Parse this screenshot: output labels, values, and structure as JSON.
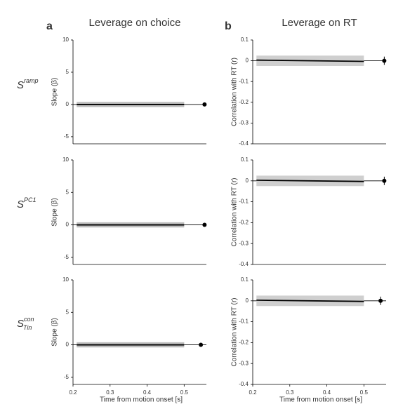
{
  "panel_labels": [
    "a",
    "b"
  ],
  "column_titles": [
    "Leverage on choice",
    "Leverage on RT"
  ],
  "row_labels": [
    {
      "base": "S",
      "sup": "ramp"
    },
    {
      "base": "S",
      "sup": "PC1"
    },
    {
      "base": "S",
      "sup": "con",
      "sub": "Tin"
    }
  ],
  "chart_data": [
    {
      "type": "line",
      "ylabel": "Slope (β)",
      "x": [
        0.21,
        0.5
      ],
      "values": [
        0,
        0
      ],
      "band_lower": [
        -0.4,
        -0.4
      ],
      "band_upper": [
        0.4,
        0.4
      ],
      "point": {
        "x": 0.555,
        "value": 0,
        "error": 0.2
      },
      "xlim": [
        0.2,
        0.56
      ],
      "ylim": [
        -6.1,
        10
      ],
      "yticks": [
        -5,
        0,
        5,
        10
      ],
      "color": "#000000",
      "band_color": "#bdbdbd"
    },
    {
      "type": "line",
      "ylabel": "Correlation with RT (r)",
      "x": [
        0.21,
        0.5
      ],
      "values": [
        0.003,
        -0.003
      ],
      "band_lower": [
        -0.025,
        -0.025
      ],
      "band_upper": [
        0.025,
        0.025
      ],
      "point": {
        "x": 0.555,
        "value": 0,
        "error": 0.02
      },
      "xlim": [
        0.2,
        0.56
      ],
      "ylim": [
        -0.4,
        0.1
      ],
      "yticks": [
        -0.4,
        -0.3,
        -0.2,
        -0.1,
        0,
        0.1
      ],
      "color": "#000000",
      "band_color": "#cfcfcf"
    },
    {
      "type": "line",
      "ylabel": "Slope (β)",
      "x": [
        0.21,
        0.5
      ],
      "values": [
        0,
        0
      ],
      "band_lower": [
        -0.4,
        -0.4
      ],
      "band_upper": [
        0.4,
        0.4
      ],
      "point": {
        "x": 0.555,
        "value": 0,
        "error": 0.2
      },
      "xlim": [
        0.2,
        0.56
      ],
      "ylim": [
        -6.1,
        10
      ],
      "yticks": [
        -5,
        0,
        5,
        10
      ],
      "color": "#000000",
      "band_color": "#bdbdbd"
    },
    {
      "type": "line",
      "ylabel": "Correlation with RT (r)",
      "x": [
        0.21,
        0.5
      ],
      "values": [
        0.003,
        -0.003
      ],
      "band_lower": [
        -0.025,
        -0.025
      ],
      "band_upper": [
        0.025,
        0.025
      ],
      "point": {
        "x": 0.555,
        "value": 0,
        "error": 0.02
      },
      "xlim": [
        0.2,
        0.56
      ],
      "ylim": [
        -0.4,
        0.1
      ],
      "yticks": [
        -0.4,
        -0.3,
        -0.2,
        -0.1,
        0,
        0.1
      ],
      "color": "#000000",
      "band_color": "#cfcfcf"
    },
    {
      "type": "line",
      "ylabel": "Slope (β)",
      "xlabel": "Time from motion onset [s]",
      "x": [
        0.21,
        0.5
      ],
      "values": [
        0,
        0
      ],
      "band_lower": [
        -0.4,
        -0.4
      ],
      "band_upper": [
        0.4,
        0.4
      ],
      "point": {
        "x": 0.545,
        "value": 0,
        "error": 0.2
      },
      "xlim": [
        0.2,
        0.56
      ],
      "ylim": [
        -6.1,
        10
      ],
      "xticks": [
        0.2,
        0.3,
        0.4,
        0.5
      ],
      "yticks": [
        -5,
        0,
        5,
        10
      ],
      "color": "#000000",
      "band_color": "#bdbdbd"
    },
    {
      "type": "line",
      "ylabel": "Correlation with RT (r)",
      "xlabel": "Time from motion onset [s]",
      "x": [
        0.21,
        0.5
      ],
      "values": [
        0.003,
        -0.003
      ],
      "band_lower": [
        -0.025,
        -0.025
      ],
      "band_upper": [
        0.025,
        0.025
      ],
      "point": {
        "x": 0.545,
        "value": 0,
        "error": 0.02
      },
      "xlim": [
        0.2,
        0.56
      ],
      "ylim": [
        -0.4,
        0.1
      ],
      "xticks": [
        0.2,
        0.3,
        0.4,
        0.5
      ],
      "yticks": [
        -0.4,
        -0.3,
        -0.2,
        -0.1,
        0,
        0.1
      ],
      "color": "#000000",
      "band_color": "#cfcfcf"
    }
  ]
}
